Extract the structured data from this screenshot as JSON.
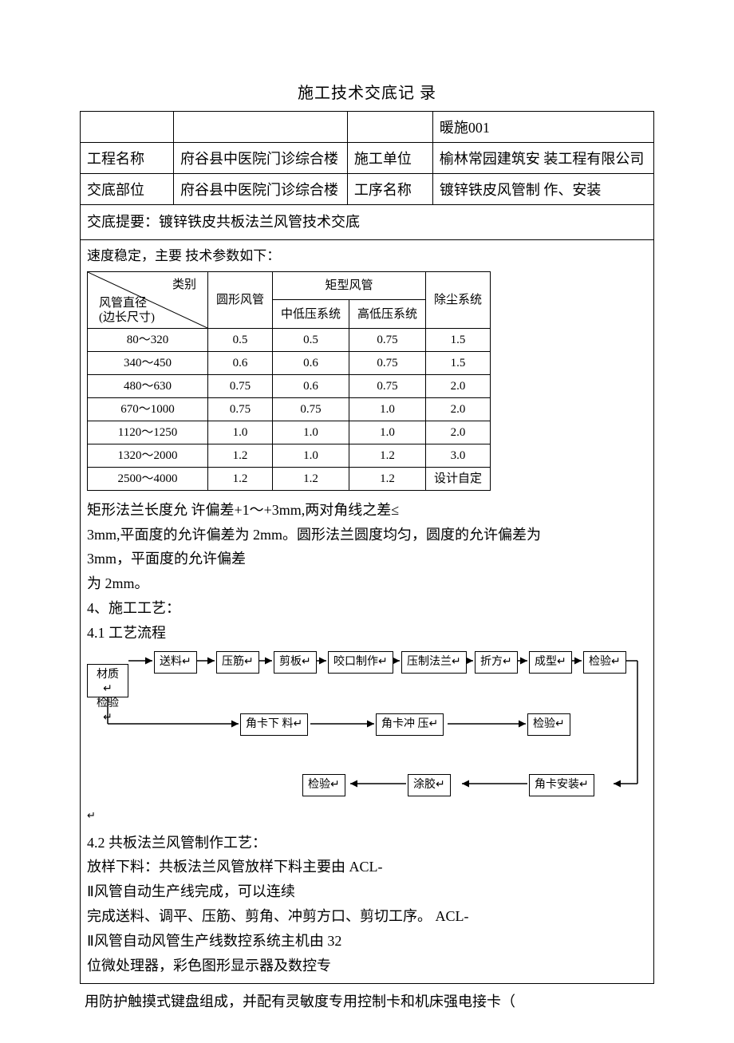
{
  "title": "施工技术交底记 录",
  "header": {
    "code": "暖施001",
    "label_project": "工程名称",
    "project_name": "府谷县中医院门诊综合楼",
    "label_unit": "施工单位",
    "unit_name": "榆林常园建筑安 装工程有限公司",
    "label_part": "交底部位",
    "part_name": "府谷县中医院门诊综合楼",
    "label_proc": "工序名称",
    "proc_name": "镀锌铁皮风管制 作、安装"
  },
  "summary_line": "交底提要：镀锌铁皮共板法兰风管技术交底",
  "speed_line": "速度稳定，主要 技术参数如下：",
  "spec_table": {
    "diag_top": "类别",
    "diag_bottom_1": "风管直径",
    "diag_bottom_2": "(边长尺寸)",
    "col_circle": "圆形风管",
    "col_rect": "矩型风管",
    "col_rect_low": "中低压系统",
    "col_rect_high": "高低压系统",
    "col_dust": "除尘系统",
    "rows": [
      {
        "range": "80～320",
        "c1": "0.5",
        "c2": "0.5",
        "c3": "0.75",
        "c4": "1.5"
      },
      {
        "range": "340～450",
        "c1": "0.6",
        "c2": "0.6",
        "c3": "0.75",
        "c4": "1.5"
      },
      {
        "range": "480～630",
        "c1": "0.75",
        "c2": "0.6",
        "c3": "0.75",
        "c4": "2.0"
      },
      {
        "range": "670～1000",
        "c1": "0.75",
        "c2": "0.75",
        "c3": "1.0",
        "c4": "2.0"
      },
      {
        "range": "1120～1250",
        "c1": "1.0",
        "c2": "1.0",
        "c3": "1.0",
        "c4": "2.0"
      },
      {
        "range": "1320～2000",
        "c1": "1.2",
        "c2": "1.0",
        "c3": "1.2",
        "c4": "3.0"
      },
      {
        "range": "2500～4000",
        "c1": "1.2",
        "c2": "1.2",
        "c3": "1.2",
        "c4": "设计自定"
      }
    ]
  },
  "tolerance": {
    "l1": "矩形法兰长度允 许偏差+1～+3mm,两对角线之差≤",
    "l2": "3mm,平面度的允许偏差为 2mm。圆形法兰圆度均匀，圆度的允许偏差为",
    "l3": "3mm，平面度的允许偏差",
    "l4": "为 2mm。"
  },
  "section4": "4、施工工艺：",
  "section41": "4.1 工艺流程",
  "flow": {
    "b_material": "材质↵\n检验↵",
    "b_feed": "送料↵",
    "b_rib": "压筋↵",
    "b_cut": "剪板↵",
    "b_bite": "咬口制作↵",
    "b_flange": "压制法兰↵",
    "b_fold": "折方↵",
    "b_form": "成型↵",
    "b_check1": "检验↵",
    "b_corner_cut": "角卡下 料↵",
    "b_corner_press": "角卡冲 压↵",
    "b_check2": "检验↵",
    "b_check3": "检验↵",
    "b_glue": "涂胶↵",
    "b_corner_install": "角卡安装↵",
    "tail_mark": "↵"
  },
  "body": {
    "l0": "4.2 共板法兰风管制作工艺：",
    "l1": "放样下料：共板法兰风管放样下料主要由 ACL-",
    "l2": "Ⅱ风管自动生产线完成，可以连续",
    "l3": "完成送料、调平、压筋、剪角、冲剪方口、剪切工序。 ACL-",
    "l4": "Ⅱ风管自动风管生产线数控系统主机由 32",
    "l5": "位微处理器，彩色图形显示器及数控专"
  },
  "footer": "用防护触摸式键盘组成，并配有灵敏度专用控制卡和机床强电接卡（",
  "colors": {
    "border": "#000000",
    "bg": "#ffffff",
    "text": "#000000"
  }
}
